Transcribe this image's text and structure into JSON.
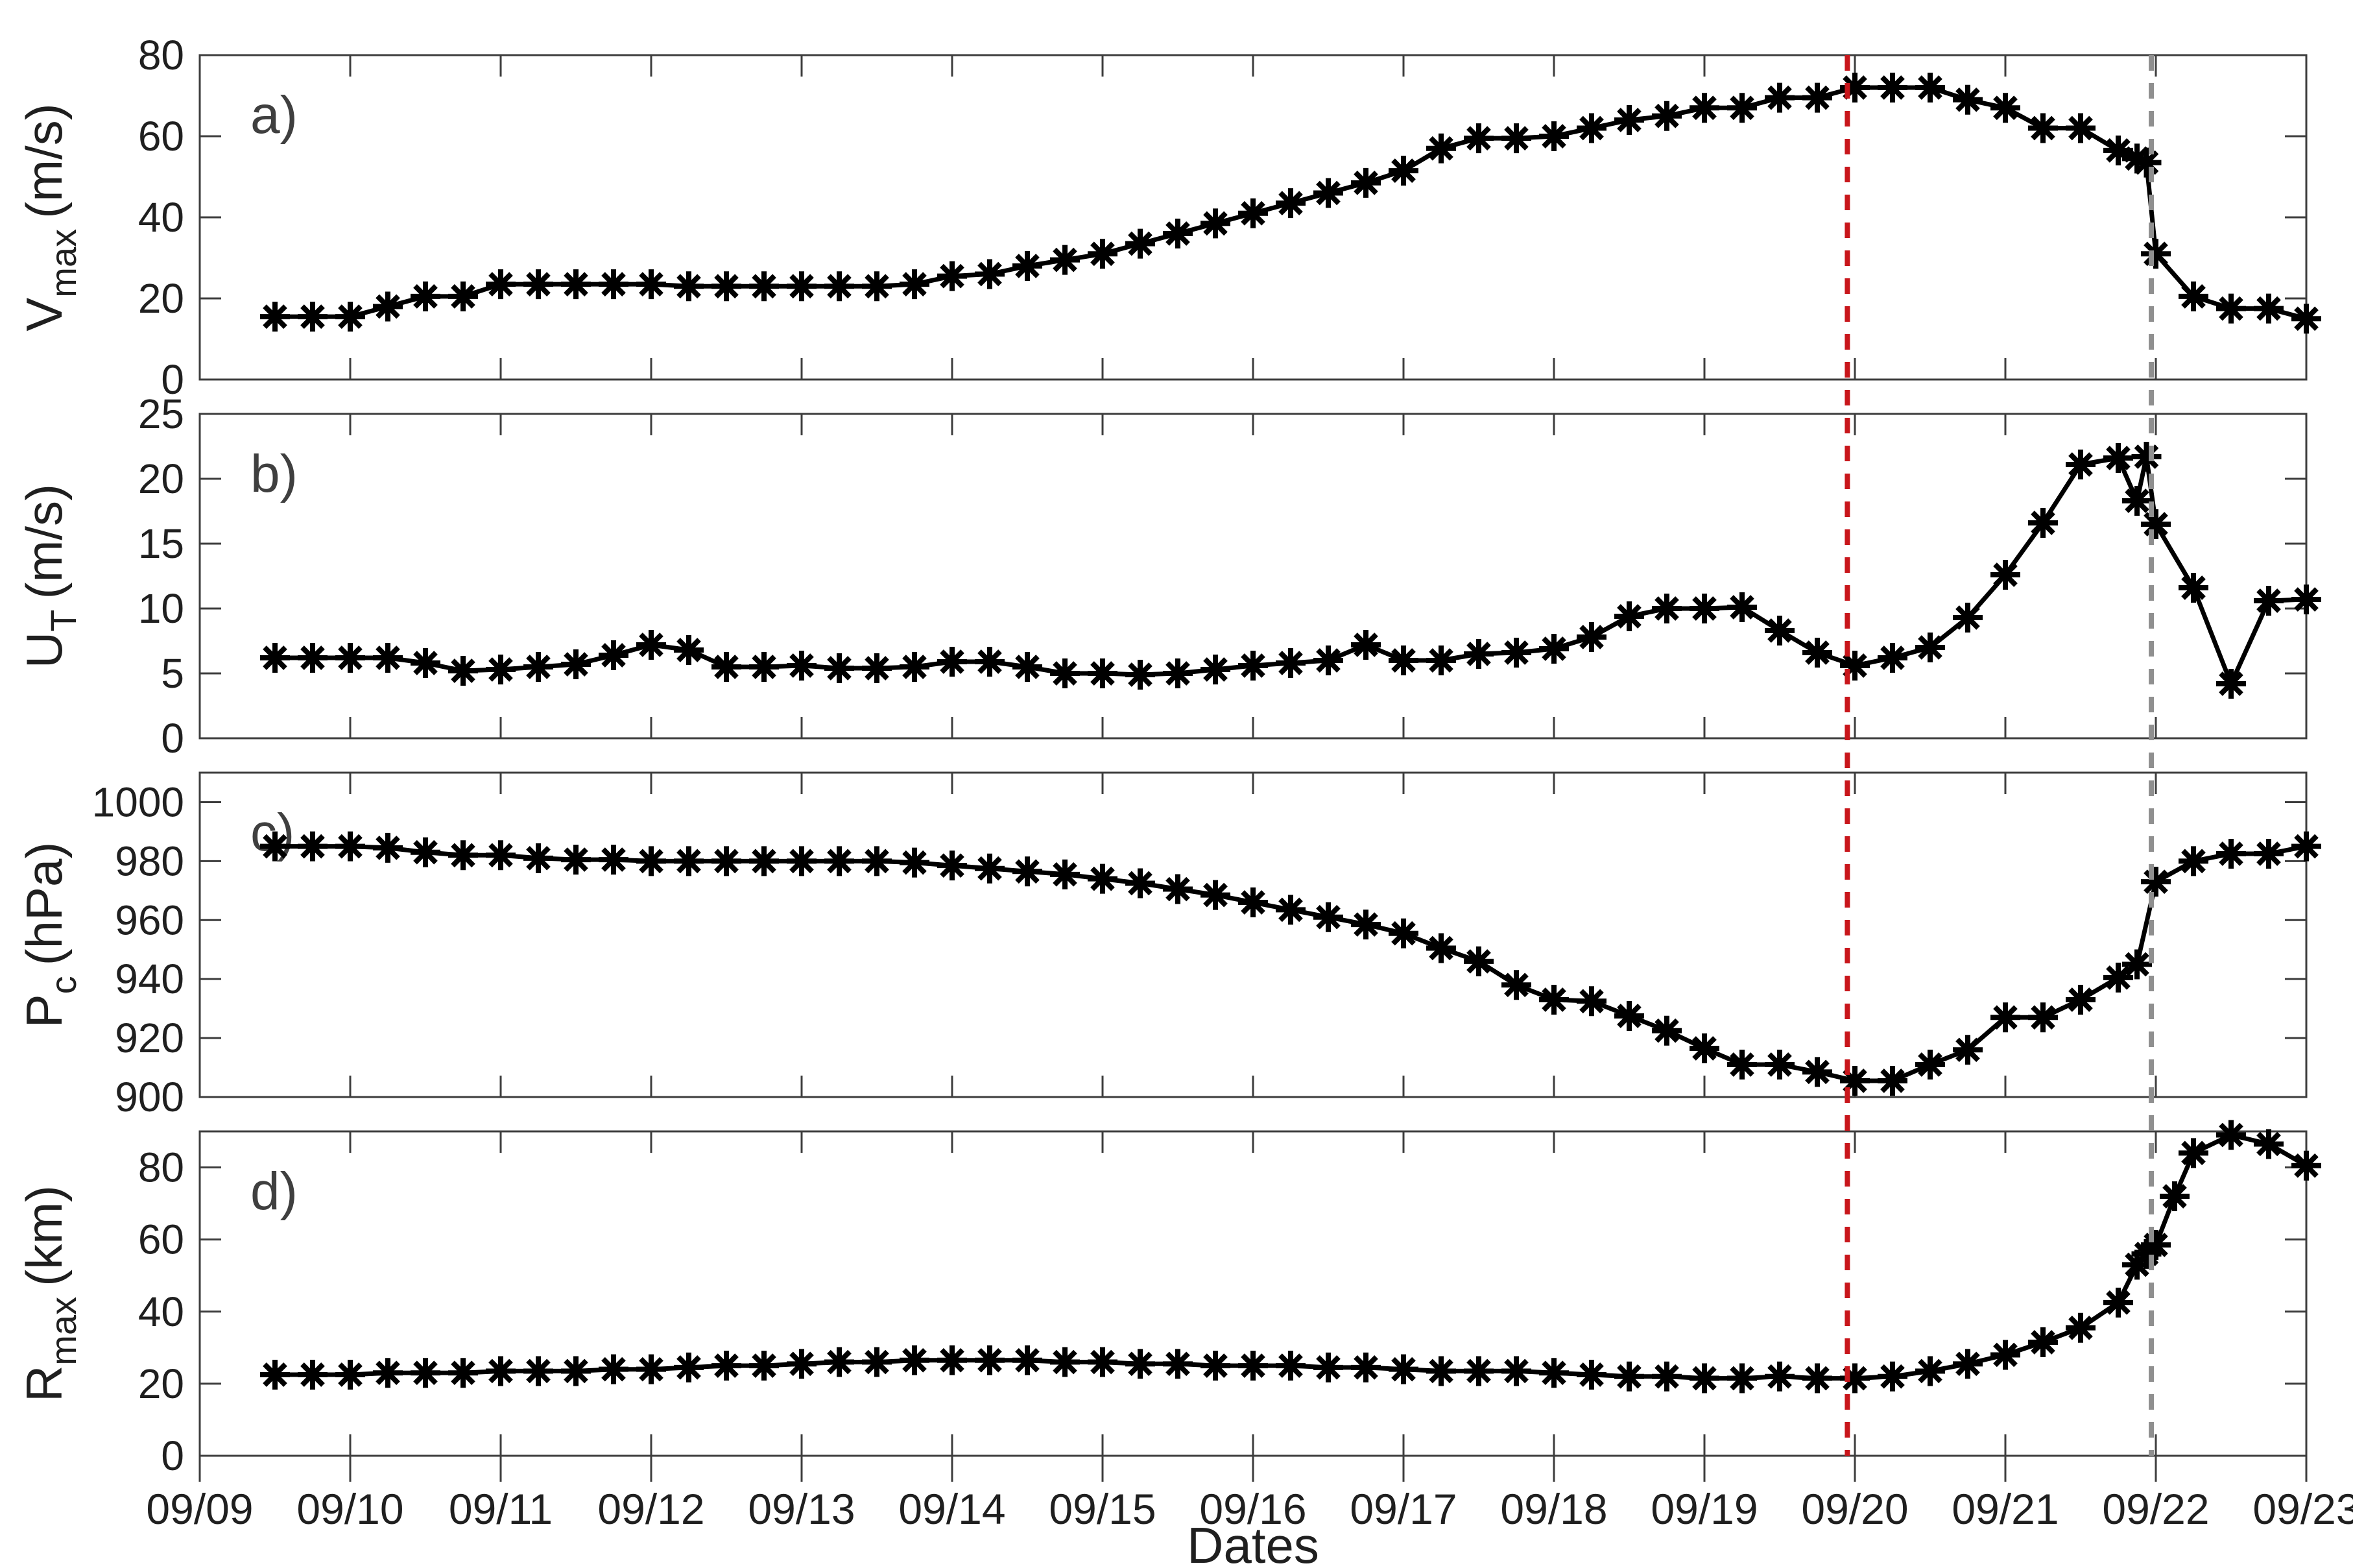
{
  "figure": {
    "xlabel": "Dates",
    "x_tick_labels": [
      "09/09",
      "09/10",
      "09/11",
      "09/12",
      "09/13",
      "09/14",
      "09/15",
      "09/16",
      "09/17",
      "09/18",
      "09/19",
      "09/20",
      "09/21",
      "09/22",
      "09/23"
    ],
    "x_range_days": [
      9,
      23
    ],
    "colors": {
      "data_line": "#000000",
      "marker": "#000000",
      "axis": "#3d3d3d",
      "text": "#1f1f1f",
      "panel_letter": "#3f3f3f",
      "red_vline": "#c8161b",
      "gray_vline": "#8f8f8f"
    },
    "vlines": [
      {
        "name": "red-dashed-vline",
        "x_day": 19.95,
        "color": "#c8161b",
        "dash": "24 19",
        "width": 8
      },
      {
        "name": "gray-dashed-vline",
        "x_day": 21.97,
        "color": "#8f8f8f",
        "dash": "24 19",
        "width": 8
      }
    ]
  },
  "chart_data": [
    {
      "type": "line",
      "panel_label": "a)",
      "ylabel_main": "V",
      "ylabel_sub": "max",
      "ylabel_unit": "(m/s)",
      "ylim": [
        0,
        80
      ],
      "yticks": [
        0,
        20,
        40,
        60,
        80
      ],
      "marker": "asterisk",
      "legend": null,
      "points": [
        [
          9.5,
          15.5
        ],
        [
          9.75,
          15.5
        ],
        [
          10,
          15.5
        ],
        [
          10.25,
          18
        ],
        [
          10.5,
          20.5
        ],
        [
          10.75,
          20.5
        ],
        [
          11,
          23.5
        ],
        [
          11.25,
          23.5
        ],
        [
          11.5,
          23.5
        ],
        [
          11.75,
          23.5
        ],
        [
          12,
          23.5
        ],
        [
          12.25,
          23
        ],
        [
          12.5,
          23
        ],
        [
          12.75,
          23
        ],
        [
          13,
          23
        ],
        [
          13.25,
          23
        ],
        [
          13.5,
          23
        ],
        [
          13.75,
          23.5
        ],
        [
          14,
          25.5
        ],
        [
          14.25,
          26
        ],
        [
          14.5,
          28
        ],
        [
          14.75,
          29.5
        ],
        [
          15,
          31
        ],
        [
          15.25,
          33.5
        ],
        [
          15.5,
          36
        ],
        [
          15.75,
          38.5
        ],
        [
          16,
          41
        ],
        [
          16.25,
          43.5
        ],
        [
          16.5,
          46
        ],
        [
          16.75,
          48.5
        ],
        [
          17,
          51.5
        ],
        [
          17.25,
          57
        ],
        [
          17.5,
          59.5
        ],
        [
          17.75,
          59.5
        ],
        [
          18,
          60
        ],
        [
          18.25,
          62
        ],
        [
          18.5,
          64
        ],
        [
          18.75,
          65
        ],
        [
          19,
          67
        ],
        [
          19.25,
          67
        ],
        [
          19.5,
          69.5
        ],
        [
          19.75,
          69.5
        ],
        [
          20,
          72
        ],
        [
          20.25,
          72
        ],
        [
          20.5,
          72
        ],
        [
          20.75,
          69
        ],
        [
          21,
          67
        ],
        [
          21.25,
          62
        ],
        [
          21.5,
          62
        ],
        [
          21.75,
          56.5
        ],
        [
          21.875,
          54.5
        ],
        [
          21.9375,
          53.5
        ],
        [
          22,
          31
        ],
        [
          22.25,
          20.5
        ],
        [
          22.5,
          17.5
        ],
        [
          22.75,
          17.5
        ],
        [
          23,
          15
        ]
      ]
    },
    {
      "type": "line",
      "panel_label": "b)",
      "ylabel_main": "U",
      "ylabel_sub": "T",
      "ylabel_unit": "(m/s)",
      "ylim": [
        0,
        25
      ],
      "yticks": [
        0,
        5,
        10,
        15,
        20,
        25
      ],
      "marker": "asterisk",
      "legend": null,
      "points": [
        [
          9.5,
          6.2
        ],
        [
          9.75,
          6.2
        ],
        [
          10,
          6.2
        ],
        [
          10.25,
          6.2
        ],
        [
          10.5,
          5.8
        ],
        [
          10.75,
          5.2
        ],
        [
          11,
          5.3
        ],
        [
          11.25,
          5.5
        ],
        [
          11.5,
          5.7
        ],
        [
          11.75,
          6.4
        ],
        [
          12,
          7.2
        ],
        [
          12.25,
          6.8
        ],
        [
          12.5,
          5.5
        ],
        [
          12.75,
          5.5
        ],
        [
          13,
          5.6
        ],
        [
          13.25,
          5.4
        ],
        [
          13.5,
          5.4
        ],
        [
          13.75,
          5.5
        ],
        [
          14,
          5.9
        ],
        [
          14.25,
          5.9
        ],
        [
          14.5,
          5.5
        ],
        [
          14.75,
          5.0
        ],
        [
          15,
          5.0
        ],
        [
          15.25,
          4.9
        ],
        [
          15.5,
          5.0
        ],
        [
          15.75,
          5.3
        ],
        [
          16,
          5.6
        ],
        [
          16.25,
          5.8
        ],
        [
          16.5,
          6.0
        ],
        [
          16.75,
          7.2
        ],
        [
          17,
          6.0
        ],
        [
          17.25,
          6.0
        ],
        [
          17.5,
          6.5
        ],
        [
          17.75,
          6.6
        ],
        [
          18,
          6.9
        ],
        [
          18.25,
          7.8
        ],
        [
          18.5,
          9.4
        ],
        [
          18.75,
          10.0
        ],
        [
          19,
          10.0
        ],
        [
          19.25,
          10.1
        ],
        [
          19.5,
          8.3
        ],
        [
          19.75,
          6.6
        ],
        [
          20,
          5.6
        ],
        [
          20.25,
          6.2
        ],
        [
          20.5,
          7.0
        ],
        [
          20.75,
          9.3
        ],
        [
          21,
          12.6
        ],
        [
          21.25,
          16.6
        ],
        [
          21.5,
          21.1
        ],
        [
          21.75,
          21.6
        ],
        [
          21.875,
          18.3
        ],
        [
          21.9375,
          21.7
        ],
        [
          22,
          16.5
        ],
        [
          22.25,
          11.6
        ],
        [
          22.5,
          4.2
        ],
        [
          22.75,
          10.6
        ],
        [
          23,
          10.7
        ]
      ]
    },
    {
      "type": "line",
      "panel_label": "c)",
      "ylabel_main": "P",
      "ylabel_sub": "c",
      "ylabel_unit": "(hPa)",
      "ylim": [
        900,
        1010
      ],
      "yticks": [
        900,
        920,
        940,
        960,
        980,
        1000
      ],
      "marker": "asterisk",
      "legend": null,
      "points": [
        [
          9.5,
          985
        ],
        [
          9.75,
          985
        ],
        [
          10,
          985
        ],
        [
          10.25,
          984.5
        ],
        [
          10.5,
          983
        ],
        [
          10.75,
          982
        ],
        [
          11,
          982
        ],
        [
          11.25,
          981
        ],
        [
          11.5,
          980.5
        ],
        [
          11.75,
          980.5
        ],
        [
          12,
          980
        ],
        [
          12.25,
          980
        ],
        [
          12.5,
          980
        ],
        [
          12.75,
          980
        ],
        [
          13,
          980
        ],
        [
          13.25,
          980
        ],
        [
          13.5,
          980
        ],
        [
          13.75,
          979.5
        ],
        [
          14,
          978.5
        ],
        [
          14.25,
          977.5
        ],
        [
          14.5,
          976.5
        ],
        [
          14.75,
          975.5
        ],
        [
          15,
          974
        ],
        [
          15.25,
          972.5
        ],
        [
          15.5,
          970.5
        ],
        [
          15.75,
          968.5
        ],
        [
          16,
          966
        ],
        [
          16.25,
          963.5
        ],
        [
          16.5,
          961
        ],
        [
          16.75,
          958.5
        ],
        [
          17,
          955.5
        ],
        [
          17.25,
          950.5
        ],
        [
          17.5,
          946
        ],
        [
          17.75,
          938
        ],
        [
          18,
          933
        ],
        [
          18.25,
          932.5
        ],
        [
          18.5,
          927.5
        ],
        [
          18.75,
          922.5
        ],
        [
          19,
          916.5
        ],
        [
          19.25,
          911
        ],
        [
          19.5,
          911
        ],
        [
          19.75,
          908.5
        ],
        [
          20,
          905.5
        ],
        [
          20.25,
          905.5
        ],
        [
          20.5,
          911
        ],
        [
          20.75,
          916
        ],
        [
          21,
          927
        ],
        [
          21.25,
          927
        ],
        [
          21.5,
          933
        ],
        [
          21.75,
          940.5
        ],
        [
          21.875,
          945
        ],
        [
          22,
          973
        ],
        [
          22.25,
          980
        ],
        [
          22.5,
          982.5
        ],
        [
          22.75,
          982.5
        ],
        [
          23,
          985
        ]
      ]
    },
    {
      "type": "line",
      "panel_label": "d)",
      "ylabel_main": "R",
      "ylabel_sub": "max",
      "ylabel_unit": "(km)",
      "ylim": [
        0,
        90
      ],
      "yticks": [
        0,
        20,
        40,
        60,
        80
      ],
      "marker": "asterisk",
      "legend": null,
      "points": [
        [
          9.5,
          22.5
        ],
        [
          9.75,
          22.5
        ],
        [
          10,
          22.5
        ],
        [
          10.25,
          23
        ],
        [
          10.5,
          23
        ],
        [
          10.75,
          23
        ],
        [
          11,
          23.5
        ],
        [
          11.25,
          23.5
        ],
        [
          11.5,
          23.5
        ],
        [
          11.75,
          24
        ],
        [
          12,
          24
        ],
        [
          12.25,
          24.5
        ],
        [
          12.5,
          25
        ],
        [
          12.75,
          25
        ],
        [
          13,
          25.5
        ],
        [
          13.25,
          26
        ],
        [
          13.5,
          26
        ],
        [
          13.75,
          26.5
        ],
        [
          14,
          26.5
        ],
        [
          14.25,
          26.5
        ],
        [
          14.5,
          26.5
        ],
        [
          14.75,
          26
        ],
        [
          15,
          26
        ],
        [
          15.25,
          25.5
        ],
        [
          15.5,
          25.5
        ],
        [
          15.75,
          25
        ],
        [
          16,
          25
        ],
        [
          16.25,
          25
        ],
        [
          16.5,
          24.5
        ],
        [
          16.75,
          24.5
        ],
        [
          17,
          24
        ],
        [
          17.25,
          23.5
        ],
        [
          17.5,
          23.5
        ],
        [
          17.75,
          23.5
        ],
        [
          18,
          23
        ],
        [
          18.25,
          22.5
        ],
        [
          18.5,
          22
        ],
        [
          18.75,
          22
        ],
        [
          19,
          21.5
        ],
        [
          19.25,
          21.5
        ],
        [
          19.5,
          22
        ],
        [
          19.75,
          21.5
        ],
        [
          20,
          21.5
        ],
        [
          20.25,
          22
        ],
        [
          20.5,
          23.5
        ],
        [
          20.75,
          25.5
        ],
        [
          21,
          28
        ],
        [
          21.25,
          31.5
        ],
        [
          21.5,
          35.5
        ],
        [
          21.75,
          42.5
        ],
        [
          21.875,
          53
        ],
        [
          21.9375,
          56
        ],
        [
          22,
          58.5
        ],
        [
          22.125,
          72
        ],
        [
          22.25,
          84
        ],
        [
          22.5,
          89
        ],
        [
          22.75,
          86.5
        ],
        [
          23,
          80.5
        ]
      ]
    }
  ]
}
